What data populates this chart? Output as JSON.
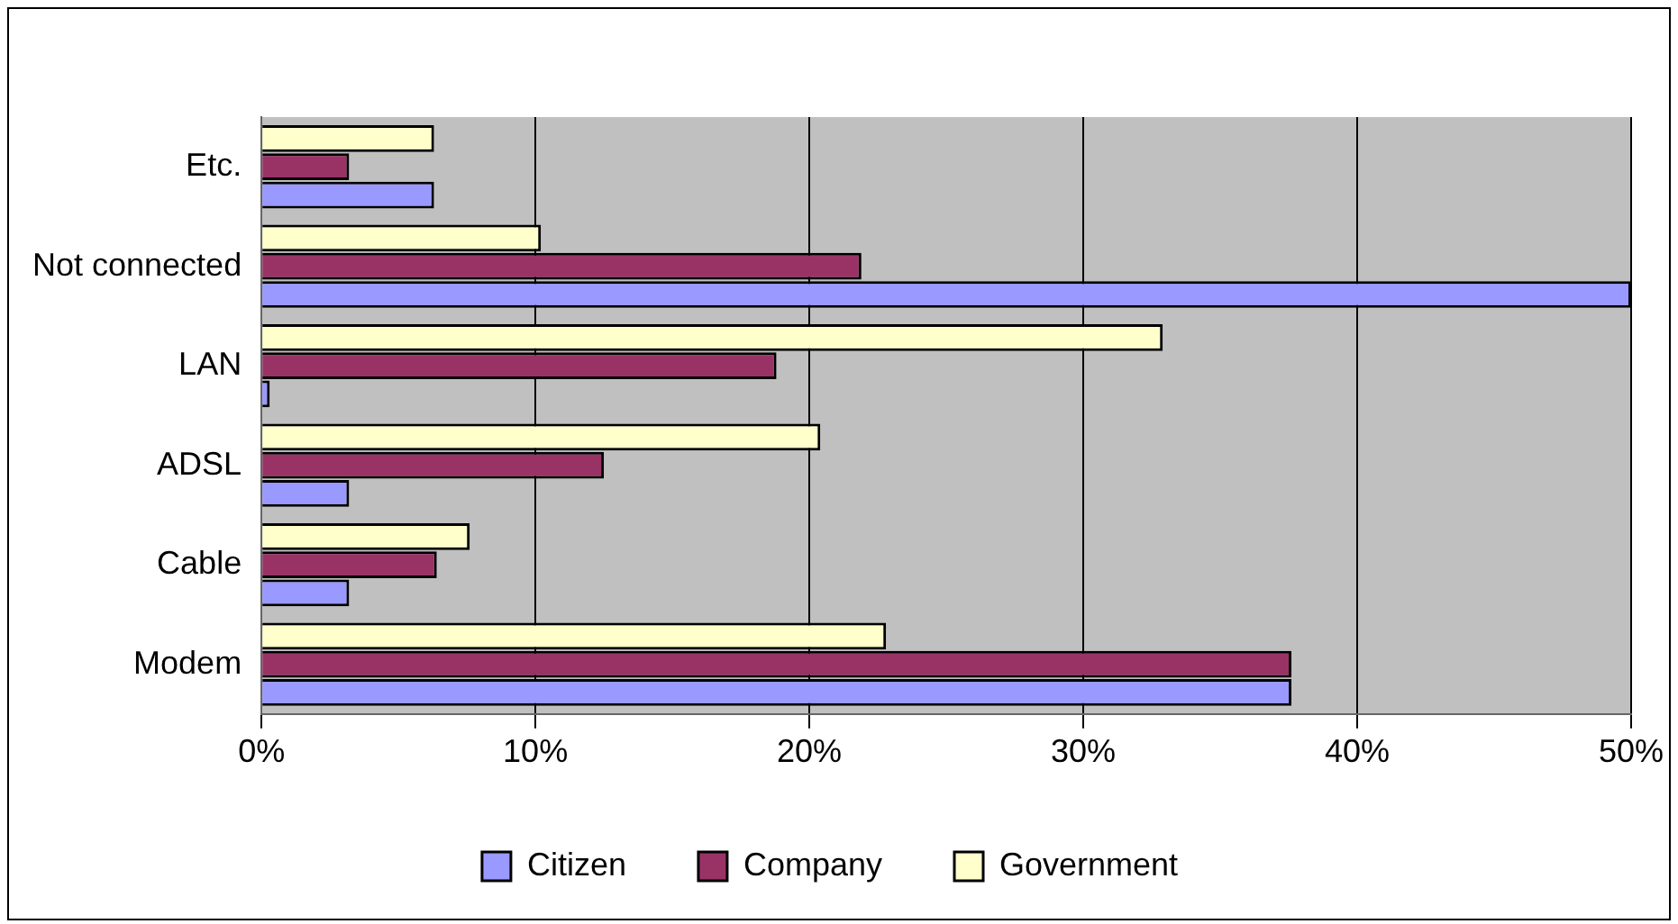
{
  "chart_data": {
    "type": "bar",
    "orientation": "horizontal",
    "categories": [
      "Etc.",
      "Not connected",
      "LAN",
      "ADSL",
      "Cable",
      "Modem"
    ],
    "series": [
      {
        "name": "Citizen",
        "color": "#9999ff",
        "values": [
          6.3,
          50,
          0.3,
          3.2,
          3.2,
          37.6
        ]
      },
      {
        "name": "Company",
        "color": "#993366",
        "values": [
          3.2,
          21.9,
          18.8,
          12.5,
          6.4,
          37.6
        ]
      },
      {
        "name": "Government",
        "color": "#ffffcc",
        "values": [
          6.3,
          10.2,
          32.9,
          20.4,
          7.6,
          22.8
        ]
      }
    ],
    "xlim": [
      0,
      50
    ],
    "xticks": [
      {
        "value": 0,
        "label": "0%"
      },
      {
        "value": 10,
        "label": "10%"
      },
      {
        "value": 20,
        "label": "20%"
      },
      {
        "value": 30,
        "label": "30%"
      },
      {
        "value": 40,
        "label": "40%"
      },
      {
        "value": 50,
        "label": "50%"
      }
    ],
    "grid": "x",
    "legend": "bottom"
  }
}
